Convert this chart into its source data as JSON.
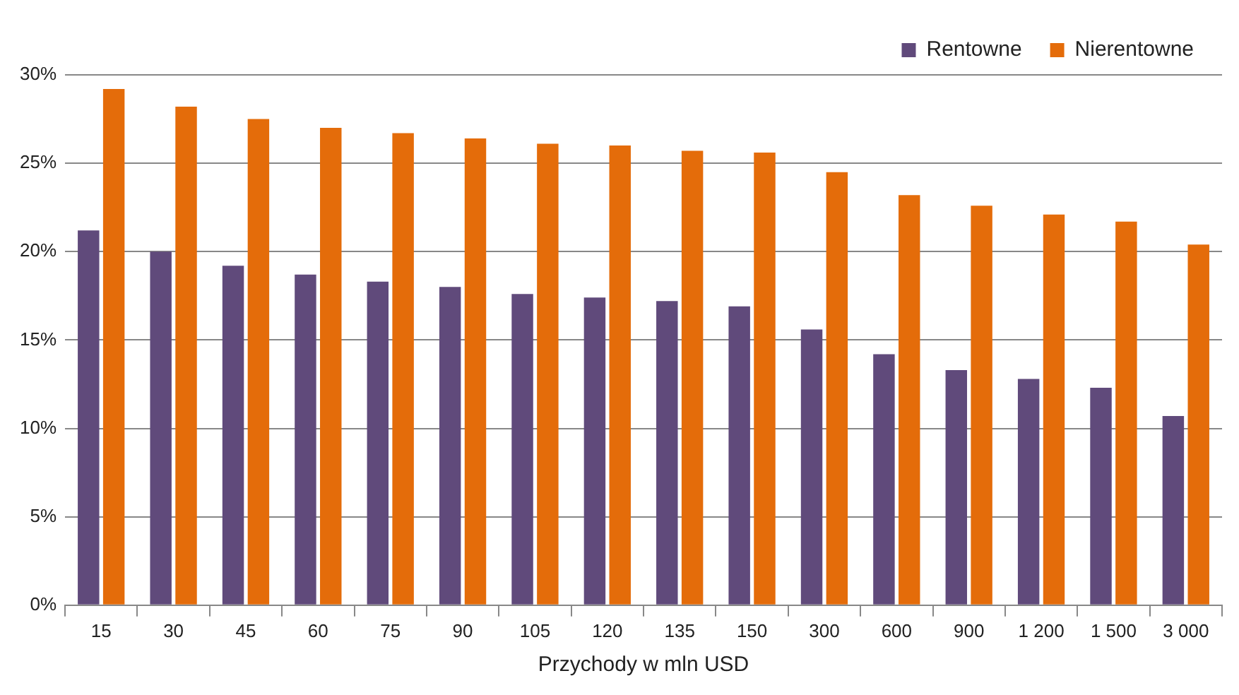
{
  "chart_data": {
    "type": "bar",
    "xlabel": "Przychody w mln USD",
    "categories": [
      "15",
      "30",
      "45",
      "60",
      "75",
      "90",
      "105",
      "120",
      "135",
      "150",
      "300",
      "600",
      "900",
      "1 200",
      "1 500",
      "3 000"
    ],
    "series": [
      {
        "name": "Rentowne",
        "color": "#604a7b",
        "values": [
          21.2,
          20.0,
          19.2,
          18.7,
          18.3,
          18.0,
          17.6,
          17.4,
          17.2,
          16.9,
          15.6,
          14.2,
          13.3,
          12.8,
          12.3,
          10.7
        ]
      },
      {
        "name": "Nierentowne",
        "color": "#e46c0a",
        "values": [
          29.2,
          28.2,
          27.5,
          27.0,
          26.7,
          26.4,
          26.1,
          26.0,
          25.7,
          25.6,
          24.5,
          23.2,
          22.6,
          22.1,
          21.7,
          20.4
        ]
      }
    ],
    "ylim": [
      0,
      30
    ],
    "yticks": [
      {
        "value": 0,
        "label": "0%"
      },
      {
        "value": 5,
        "label": "5%"
      },
      {
        "value": 10,
        "label": "10%"
      },
      {
        "value": 15,
        "label": "15%"
      },
      {
        "value": 20,
        "label": "20%"
      },
      {
        "value": 25,
        "label": "25%"
      },
      {
        "value": 30,
        "label": "30%"
      }
    ],
    "grid": "y",
    "legend": "top right"
  }
}
